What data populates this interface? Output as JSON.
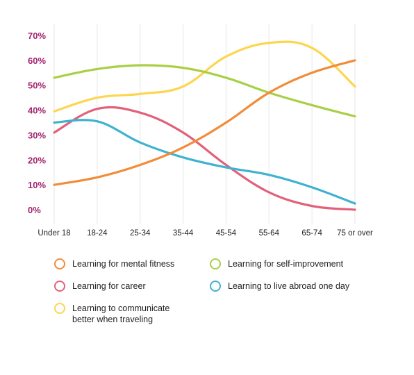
{
  "chart_data": {
    "type": "line",
    "title": "",
    "xlabel": "",
    "ylabel": "",
    "ylim": [
      0,
      70
    ],
    "yticks": [
      "70%",
      "60%",
      "50%",
      "40%",
      "30%",
      "20%",
      "10%",
      "0%"
    ],
    "categories": [
      "Under 18",
      "18-24",
      "25-34",
      "35-44",
      "45-54",
      "55-64",
      "65-74",
      "75 or over"
    ],
    "grid": "vertical",
    "legend_position": "bottom",
    "series": [
      {
        "name": "Learning for mental fitness",
        "color": "#f28c38",
        "values": [
          10,
          13,
          18,
          25,
          35,
          47,
          55,
          60
        ]
      },
      {
        "name": "Learning for self-improvement",
        "color": "#a9cf46",
        "values": [
          53,
          56.5,
          58,
          57,
          53,
          47,
          42,
          37.5
        ]
      },
      {
        "name": "Learning for career",
        "color": "#e2607a",
        "values": [
          31,
          40.5,
          39,
          31,
          18,
          7,
          1.5,
          0
        ]
      },
      {
        "name": "Learning to live abroad one day",
        "color": "#3eb2cf",
        "values": [
          35,
          35.5,
          27,
          21,
          17,
          14,
          9,
          2.5
        ]
      },
      {
        "name": "Learning to communicate\nbetter when traveling",
        "color": "#fdd54e",
        "values": [
          39.5,
          45,
          46.5,
          49.5,
          61.5,
          67,
          65,
          49.5
        ]
      }
    ]
  }
}
